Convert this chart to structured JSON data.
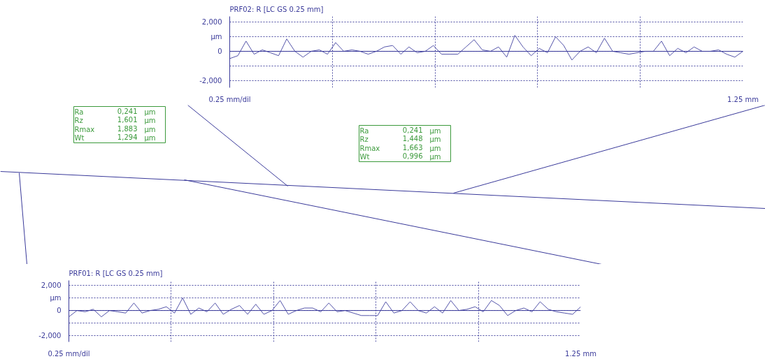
{
  "chart_data": [
    {
      "type": "line",
      "title": "PRF02: R [LC GS 0.25 mm]",
      "ylim": [
        -2500,
        2400
      ],
      "categories": [
        null,
        null,
        null,
        null,
        null,
        null,
        null,
        null,
        null,
        null,
        null,
        null,
        null,
        null,
        null,
        null,
        null,
        null,
        null,
        null,
        null,
        null,
        null,
        null,
        null,
        null,
        null,
        null,
        null,
        null,
        null,
        null,
        null,
        null,
        null,
        null,
        null,
        null,
        null,
        null,
        null,
        null,
        null,
        null,
        null,
        null,
        null,
        null,
        null,
        null,
        null,
        null,
        null,
        null,
        null,
        null,
        null,
        null,
        null,
        null,
        null,
        null,
        null,
        null
      ],
      "yticks": [
        {
          "value": 2000,
          "label": "2,000"
        },
        {
          "value": 1000,
          "label": "µm"
        },
        0,
        {
          "value": -1000,
          "label": null
        },
        {
          "value": -2000,
          "label": "-2,000"
        }
      ],
      "grid": true,
      "line_style": "solid",
      "annotations": [
        "0.25 mm/dil",
        "1.25 mm"
      ],
      "ref_lines": [
        {
          "axis": "y",
          "value": 0,
          "label": null,
          "color": "#3a3a9a"
        }
      ],
      "series": [
        {
          "color": "#5555aa",
          "values": [
            -500,
            -300,
            700,
            -200,
            100,
            -100,
            -300,
            850,
            0,
            -400,
            0,
            100,
            -200,
            600,
            0,
            100,
            0,
            -200,
            0,
            300,
            400,
            -200,
            300,
            -100,
            0,
            400,
            -200,
            -200,
            -200,
            300,
            800,
            100,
            0,
            300,
            -400,
            1100,
            300,
            -300,
            200,
            -100,
            1000,
            400,
            -600,
            0,
            300,
            -100,
            900,
            0,
            -100,
            -200,
            -100,
            0,
            0,
            700,
            -300,
            200,
            -100,
            300,
            0,
            0,
            100,
            -200,
            -400,
            0
          ]
        }
      ]
    },
    {
      "type": "other",
      "annotations": [
        "Ra",
        "0,241",
        "µm",
        "Rz",
        "1,601",
        "µm",
        "Rmax",
        "1,883",
        "µm",
        "Wt",
        "1,294",
        "µm"
      ]
    },
    {
      "type": "other",
      "annotations": [
        "Ra",
        "0,241",
        "µm",
        "Rz",
        "1,448",
        "µm",
        "Rmax",
        "1,663",
        "µm",
        "Wt",
        "0,996",
        "µm"
      ]
    },
    {
      "type": "line",
      "title": "PRF01: R [LC GS 0.25 mm]",
      "ylim": [
        -2500,
        2400
      ],
      "categories": [
        null,
        null,
        null,
        null,
        null,
        null,
        null,
        null,
        null,
        null,
        null,
        null,
        null,
        null,
        null,
        null,
        null,
        null,
        null,
        null,
        null,
        null,
        null,
        null,
        null,
        null,
        null,
        null,
        null,
        null,
        null,
        null,
        null,
        null,
        null,
        null,
        null,
        null,
        null,
        null,
        null,
        null,
        null,
        null,
        null,
        null,
        null,
        null,
        null,
        null,
        null,
        null,
        null,
        null,
        null,
        null,
        null,
        null,
        null,
        null,
        null,
        null,
        null,
        null
      ],
      "yticks": [
        {
          "value": 2000,
          "label": "2,000"
        },
        {
          "value": 1000,
          "label": "µm"
        },
        0,
        {
          "value": -1000,
          "label": null
        },
        {
          "value": -2000,
          "label": "-2,000"
        }
      ],
      "grid": true,
      "line_style": "solid",
      "annotations": [
        "0.25 mm/dil",
        "1.25 mm"
      ],
      "ref_lines": [
        {
          "axis": "y",
          "value": 0,
          "label": null,
          "color": "#3a3a9a"
        }
      ],
      "series": [
        {
          "color": "#5555aa",
          "values": [
            -500,
            0,
            -100,
            100,
            -500,
            0,
            -100,
            -200,
            600,
            -200,
            0,
            100,
            300,
            -200,
            1000,
            -300,
            200,
            -100,
            600,
            -300,
            100,
            400,
            -300,
            500,
            -300,
            0,
            800,
            -300,
            0,
            200,
            200,
            -100,
            600,
            -100,
            0,
            -200,
            -400,
            -400,
            -400,
            700,
            -200,
            0,
            700,
            0,
            -200,
            300,
            -200,
            800,
            0,
            100,
            300,
            -100,
            800,
            400,
            -400,
            0,
            200,
            -100,
            700,
            100,
            -100,
            -200,
            -300,
            300
          ]
        }
      ]
    }
  ]
}
